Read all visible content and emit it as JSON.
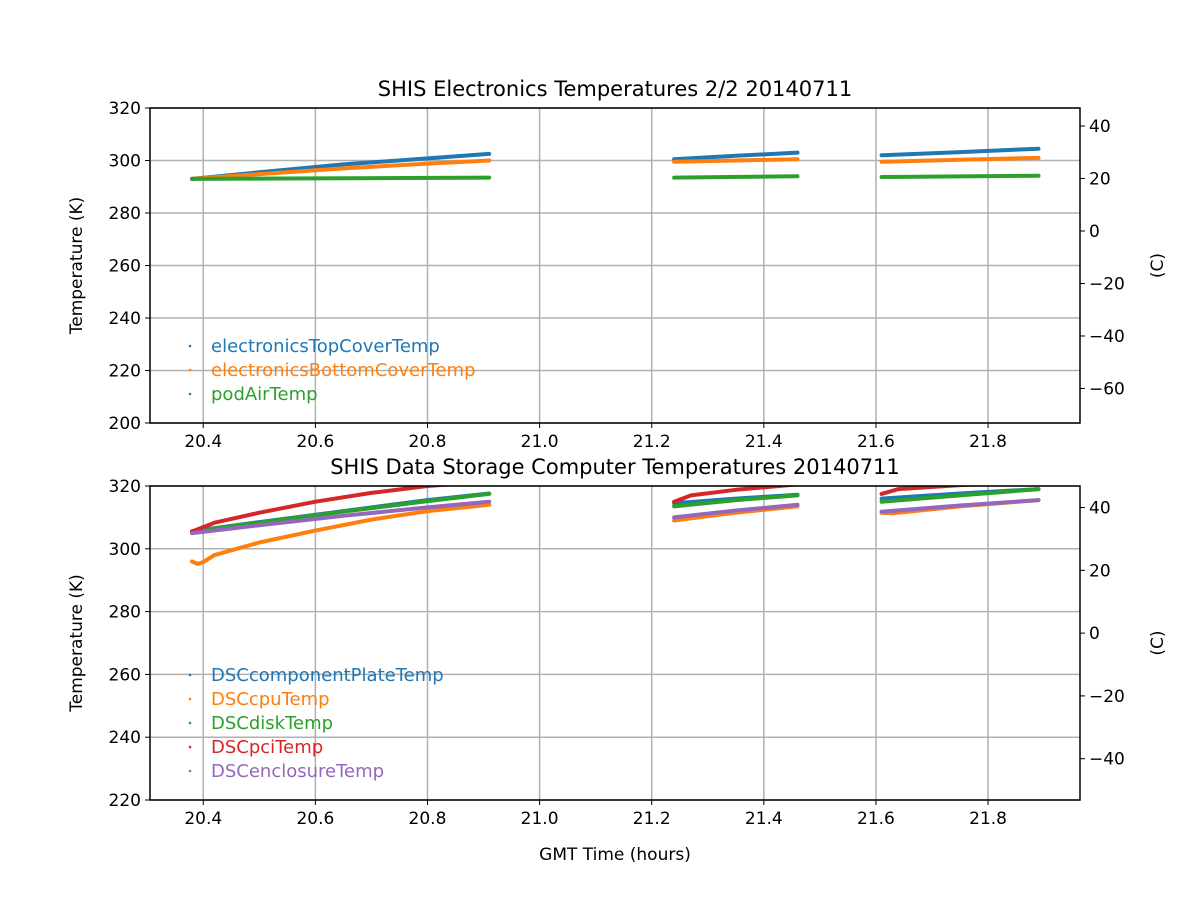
{
  "chart_data": [
    {
      "type": "line",
      "title": "SHIS Electronics Temperatures 2/2 20140711",
      "xlabel": "",
      "ylabel": "Temperature (K)",
      "ylabel_right": "(C)",
      "xlim": [
        20.305,
        21.964
      ],
      "ylim": [
        200,
        320
      ],
      "xticks": [
        "20.4",
        "20.6",
        "20.8",
        "21.0",
        "21.2",
        "21.4",
        "21.6",
        "21.8"
      ],
      "yticks": [
        "200",
        "220",
        "240",
        "260",
        "280",
        "300",
        "320"
      ],
      "yticks_right": [
        "40",
        "20",
        "0",
        "−20",
        "−40",
        "−60"
      ],
      "grid": true,
      "legend_position": "lower-left",
      "series": [
        {
          "name": "electronicsTopCoverTemp",
          "color": "#1f77b4",
          "segments": [
            [
              [
                20.38,
                293
              ],
              [
                20.5,
                295.5
              ],
              [
                20.65,
                298.5
              ],
              [
                20.8,
                300.8
              ],
              [
                20.91,
                302.5
              ]
            ],
            [
              [
                21.24,
                300.5
              ],
              [
                21.35,
                301.8
              ],
              [
                21.46,
                303
              ]
            ],
            [
              [
                21.61,
                302
              ],
              [
                21.75,
                303.2
              ],
              [
                21.89,
                304.5
              ]
            ]
          ]
        },
        {
          "name": "electronicsBottomCoverTemp",
          "color": "#ff7f0e",
          "segments": [
            [
              [
                20.38,
                293
              ],
              [
                20.5,
                294.8
              ],
              [
                20.65,
                297
              ],
              [
                20.8,
                298.8
              ],
              [
                20.91,
                300
              ]
            ],
            [
              [
                21.24,
                299.5
              ],
              [
                21.35,
                300
              ],
              [
                21.46,
                300.5
              ]
            ],
            [
              [
                21.61,
                299.5
              ],
              [
                21.75,
                300.3
              ],
              [
                21.89,
                301
              ]
            ]
          ]
        },
        {
          "name": "podAirTemp",
          "color": "#2ca02c",
          "segments": [
            [
              [
                20.38,
                293
              ],
              [
                20.6,
                293.2
              ],
              [
                20.91,
                293.5
              ]
            ],
            [
              [
                21.24,
                293.5
              ],
              [
                21.46,
                294
              ]
            ],
            [
              [
                21.61,
                293.7
              ],
              [
                21.89,
                294.2
              ]
            ]
          ]
        }
      ]
    },
    {
      "type": "line",
      "title": "SHIS Data Storage Computer Temperatures 20140711",
      "xlabel": "GMT Time (hours)",
      "ylabel": "Temperature (K)",
      "ylabel_right": "(C)",
      "xlim": [
        20.305,
        21.964
      ],
      "ylim": [
        220,
        320
      ],
      "xticks": [
        "20.4",
        "20.6",
        "20.8",
        "21.0",
        "21.2",
        "21.4",
        "21.6",
        "21.8"
      ],
      "yticks": [
        "220",
        "240",
        "260",
        "280",
        "300",
        "320"
      ],
      "yticks_right": [
        "40",
        "20",
        "0",
        "−20",
        "−40"
      ],
      "grid": true,
      "legend_position": "lower-left",
      "series": [
        {
          "name": "DSCcomponentPlateTemp",
          "color": "#1f77b4",
          "segments": [
            [
              [
                20.38,
                305.6
              ],
              [
                20.5,
                308.5
              ],
              [
                20.65,
                312
              ],
              [
                20.8,
                315.5
              ],
              [
                20.91,
                317.6
              ]
            ],
            [
              [
                21.24,
                314.5
              ],
              [
                21.35,
                316
              ],
              [
                21.46,
                317.2
              ]
            ],
            [
              [
                21.61,
                316
              ],
              [
                21.75,
                317.6
              ],
              [
                21.89,
                319
              ]
            ]
          ]
        },
        {
          "name": "DSCcpuTemp",
          "color": "#ff7f0e",
          "segments": [
            [
              [
                20.38,
                296
              ],
              [
                20.39,
                295.2
              ],
              [
                20.4,
                295.8
              ],
              [
                20.42,
                298
              ],
              [
                20.5,
                302
              ],
              [
                20.6,
                305.8
              ],
              [
                20.7,
                309.3
              ],
              [
                20.8,
                312
              ],
              [
                20.91,
                314
              ]
            ],
            [
              [
                21.24,
                309
              ],
              [
                21.35,
                311.5
              ],
              [
                21.46,
                313.5
              ]
            ],
            [
              [
                21.61,
                311.5
              ],
              [
                21.63,
                311.3
              ],
              [
                21.75,
                313.5
              ],
              [
                21.89,
                315.5
              ]
            ]
          ]
        },
        {
          "name": "DSCdiskTemp",
          "color": "#2ca02c",
          "segments": [
            [
              [
                20.38,
                305.5
              ],
              [
                20.5,
                308.3
              ],
              [
                20.65,
                311.8
              ],
              [
                20.8,
                315.2
              ],
              [
                20.91,
                317.5
              ]
            ],
            [
              [
                21.24,
                313.5
              ],
              [
                21.35,
                315.5
              ],
              [
                21.46,
                317
              ]
            ],
            [
              [
                21.61,
                315
              ],
              [
                21.75,
                317
              ],
              [
                21.89,
                319
              ]
            ]
          ]
        },
        {
          "name": "DSCpciTemp",
          "color": "#d62728",
          "segments": [
            [
              [
                20.38,
                305.5
              ],
              [
                20.42,
                308.3
              ],
              [
                20.5,
                311.5
              ],
              [
                20.6,
                315
              ],
              [
                20.7,
                317.8
              ],
              [
                20.8,
                320
              ],
              [
                20.91,
                321.5
              ]
            ],
            [
              [
                21.24,
                315
              ],
              [
                21.27,
                317
              ],
              [
                21.35,
                318.8
              ],
              [
                21.46,
                320.5
              ]
            ],
            [
              [
                21.61,
                317.5
              ],
              [
                21.64,
                319
              ],
              [
                21.75,
                320.3
              ],
              [
                21.89,
                321.5
              ]
            ]
          ]
        },
        {
          "name": "DSCenclosureTemp",
          "color": "#9467bd",
          "segments": [
            [
              [
                20.38,
                305
              ],
              [
                20.5,
                307.5
              ],
              [
                20.65,
                310.5
              ],
              [
                20.8,
                313.2
              ],
              [
                20.91,
                315
              ]
            ],
            [
              [
                21.24,
                310
              ],
              [
                21.35,
                312.2
              ],
              [
                21.46,
                314
              ]
            ],
            [
              [
                21.61,
                311.8
              ],
              [
                21.75,
                313.8
              ],
              [
                21.89,
                315.5
              ]
            ]
          ]
        }
      ]
    }
  ]
}
